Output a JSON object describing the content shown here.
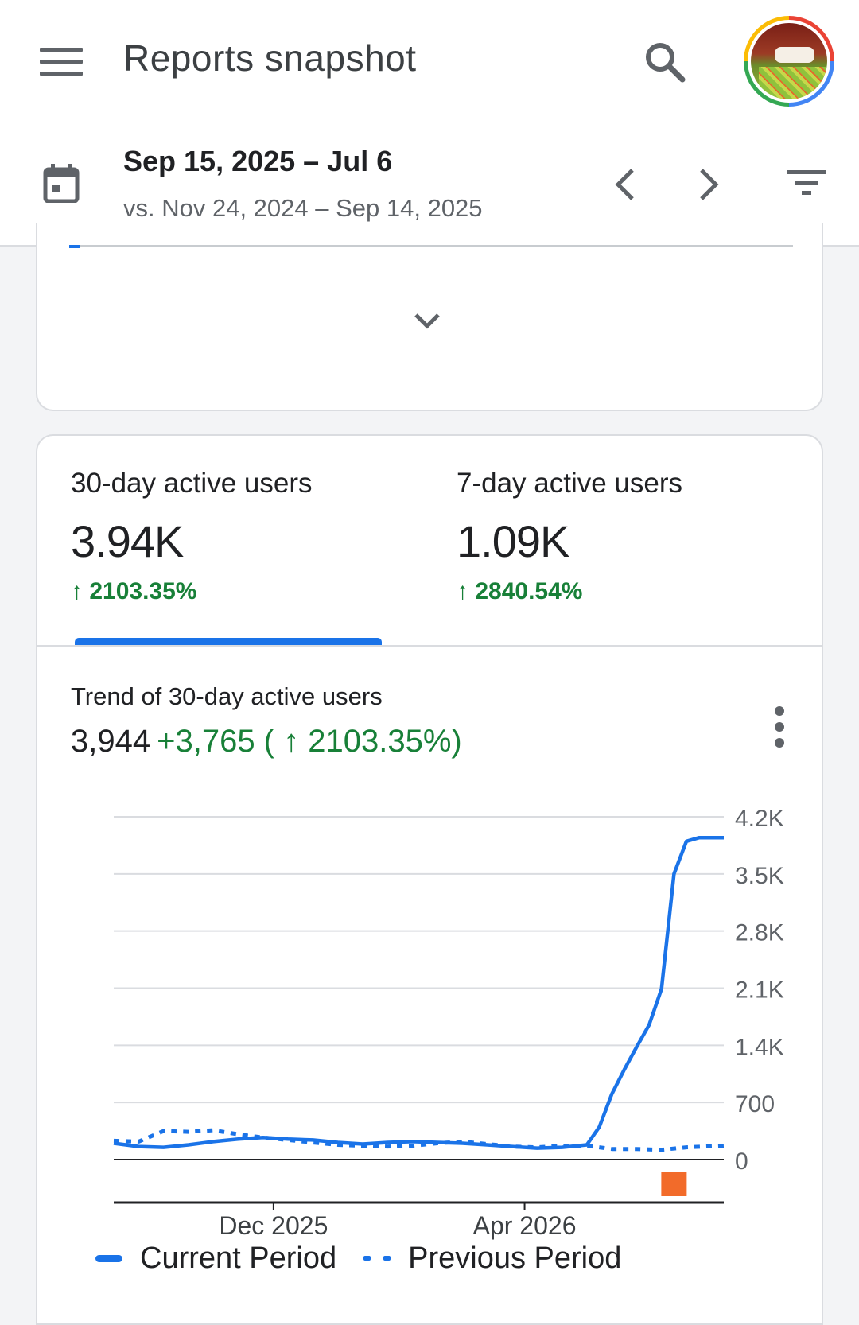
{
  "app_bar": {
    "title": "Reports snapshot",
    "menu_icon": "menu-icon",
    "search_icon": "search-icon",
    "avatar": "account-avatar"
  },
  "date_range": {
    "current": "Sep 15, 2025 – Jul 6",
    "comparison": "vs. Nov 24, 2024 – Sep 14, 2025",
    "icons": [
      "calendar-icon",
      "chevron-left-icon",
      "chevron-right-icon",
      "filter-icon"
    ]
  },
  "metrics": [
    {
      "label": "30-day active users",
      "value": "3.94K",
      "change": "↑ 2103.35%",
      "selected": true
    },
    {
      "label": "7-day active users",
      "value": "1.09K",
      "change": "↑ 2840.54%",
      "selected": false
    }
  ],
  "trend": {
    "title": "Trend of 30-day active users",
    "total": "3,944",
    "delta": "+3,765 ( ↑ 2103.35%)"
  },
  "colors": {
    "accent": "#1a73e8",
    "positive": "#188038",
    "anomaly": "#f26b2a"
  },
  "chart_data": {
    "type": "line",
    "x_tick_labels": [
      "Dec 2025",
      "Apr 2026"
    ],
    "y_tick_labels": [
      "4.2K",
      "3.5K",
      "2.8K",
      "2.1K",
      "1.4K",
      "700",
      "0"
    ],
    "ylim": [
      0,
      4200
    ],
    "y_axis_side": "right",
    "grid": true,
    "legend_position": "bottom",
    "series": [
      {
        "name": "Current Period",
        "style": "solid",
        "x": [
          "2025-09-15",
          "2025-09-27",
          "2025-10-09",
          "2025-10-21",
          "2025-11-02",
          "2025-11-14",
          "2025-11-26",
          "2025-12-08",
          "2025-12-20",
          "2026-01-01",
          "2026-01-13",
          "2026-01-25",
          "2026-02-06",
          "2026-02-18",
          "2026-03-02",
          "2026-03-14",
          "2026-03-26",
          "2026-04-07",
          "2026-04-19",
          "2026-05-01",
          "2026-05-07",
          "2026-05-13",
          "2026-05-19",
          "2026-05-25",
          "2026-05-31",
          "2026-06-06",
          "2026-06-12",
          "2026-06-18",
          "2026-06-24",
          "2026-07-06"
        ],
        "values": [
          200,
          160,
          150,
          180,
          220,
          250,
          270,
          250,
          240,
          210,
          190,
          210,
          220,
          210,
          200,
          180,
          160,
          140,
          150,
          180,
          400,
          800,
          1100,
          1380,
          1650,
          2090,
          3500,
          3900,
          3944,
          3944
        ]
      },
      {
        "name": "Previous Period",
        "style": "dotted",
        "x": [
          "2025-09-15",
          "2025-09-27",
          "2025-10-09",
          "2025-10-21",
          "2025-11-02",
          "2025-11-14",
          "2025-11-26",
          "2025-12-08",
          "2025-12-20",
          "2026-01-01",
          "2026-01-13",
          "2026-01-25",
          "2026-02-06",
          "2026-02-18",
          "2026-03-02",
          "2026-03-14",
          "2026-03-26",
          "2026-04-07",
          "2026-04-19",
          "2026-05-01",
          "2026-05-13",
          "2026-05-25",
          "2026-06-06",
          "2026-06-18",
          "2026-07-06"
        ],
        "values": [
          230,
          220,
          350,
          340,
          360,
          310,
          270,
          240,
          210,
          180,
          170,
          160,
          170,
          200,
          220,
          190,
          160,
          150,
          170,
          170,
          130,
          130,
          120,
          150,
          170
        ]
      }
    ],
    "annotation": {
      "type": "anomaly-marker",
      "date": "2026-06-12"
    }
  }
}
